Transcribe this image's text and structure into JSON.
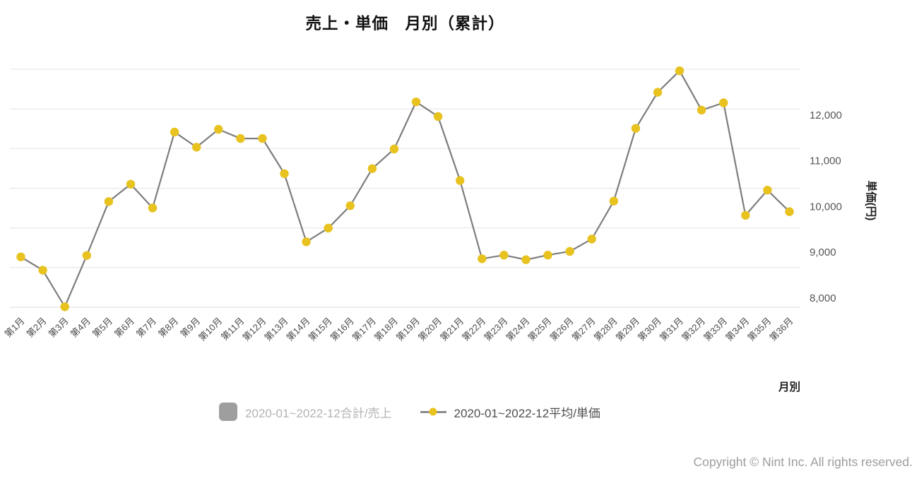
{
  "chart_data": {
    "type": "line",
    "title": "売上・単価　月別（累計）",
    "categories": [
      "第1月",
      "第2月",
      "第3月",
      "第4月",
      "第5月",
      "第6月",
      "第7月",
      "第8月",
      "第9月",
      "第10月",
      "第11月",
      "第12月",
      "第13月",
      "第14月",
      "第15月",
      "第16月",
      "第17月",
      "第18月",
      "第19月",
      "第20月",
      "第21月",
      "第22月",
      "第23月",
      "第24月",
      "第25月",
      "第26月",
      "第27月",
      "第28月",
      "第29月",
      "第30月",
      "第31月",
      "第32月",
      "第33月",
      "第34月",
      "第35月",
      "第36月"
    ],
    "series": [
      {
        "name": "2020-01~2022-12合計/売上",
        "type": "bar",
        "visible": false,
        "color": "#9e9e9e",
        "values": []
      },
      {
        "name": "2020-01~2022-12平均/単価",
        "type": "line",
        "visible": true,
        "color": "#e8c21e",
        "line_color": "#7d7d7d",
        "values": [
          8890,
          8600,
          7800,
          8920,
          10100,
          10480,
          9960,
          11620,
          11290,
          11680,
          11480,
          11480,
          10710,
          9220,
          9520,
          10010,
          10820,
          11250,
          12280,
          11960,
          10560,
          8850,
          8930,
          8830,
          8930,
          9010,
          9280,
          10110,
          11700,
          12490,
          12960,
          12100,
          12260,
          9800,
          10350,
          9880
        ]
      }
    ],
    "x_axis": {
      "title": "月別"
    },
    "y_axis": {
      "title": "単価(円)",
      "ticks": [
        "12,000",
        "11,000",
        "10,000",
        "9,000",
        "8,000"
      ],
      "tick_values": [
        12000,
        11000,
        10000,
        9000,
        8000
      ],
      "ylim": [
        7790,
        13000
      ],
      "grid": true
    },
    "legend_position": "bottom"
  },
  "footer": {
    "copyright": "Copyright © Nint Inc. All rights reserved."
  }
}
